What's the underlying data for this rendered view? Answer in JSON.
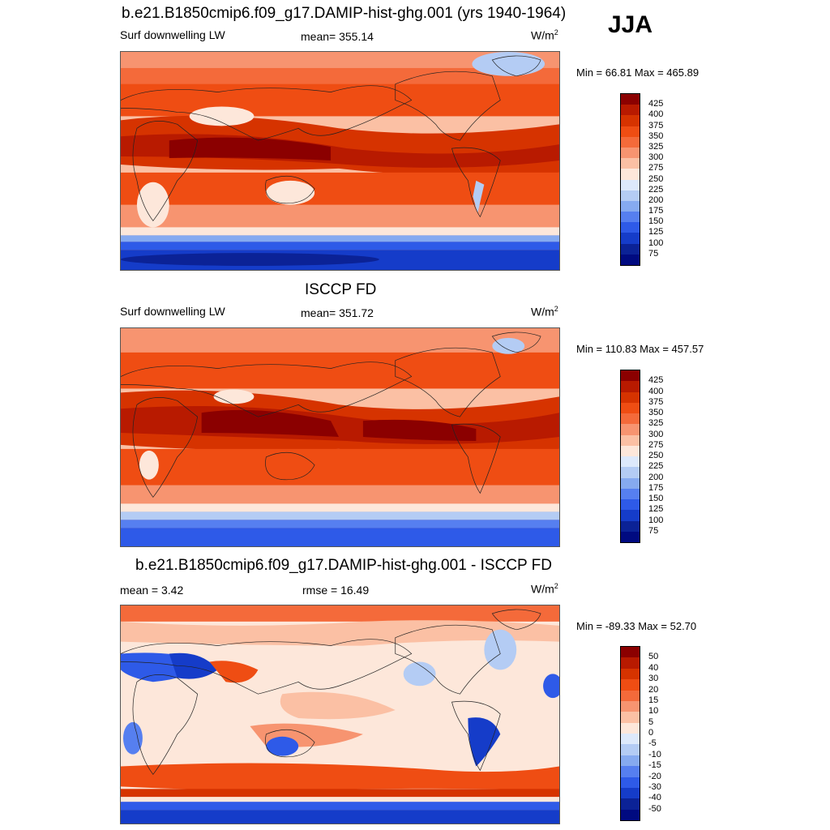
{
  "season": "JJA",
  "panels": [
    {
      "title": "b.e21.B1850cmip6.f09_g17.DAMIP-hist-ghg.001 (yrs 1940-1964)",
      "left_label": "Surf downwelling LW",
      "center_label": "mean= 355.14",
      "unit_base": "W/m",
      "unit_sup": "2",
      "minmax": "Min =  66.81 Max = 465.89",
      "colorbar_labels": [
        "425",
        "400",
        "375",
        "350",
        "325",
        "300",
        "275",
        "250",
        "225",
        "200",
        "175",
        "150",
        "125",
        "100",
        "75"
      ]
    },
    {
      "title": "ISCCP FD",
      "left_label": "Surf downwelling LW",
      "center_label": "mean= 351.72",
      "unit_base": "W/m",
      "unit_sup": "2",
      "minmax": "Min = 110.83 Max = 457.57",
      "colorbar_labels": [
        "425",
        "400",
        "375",
        "350",
        "325",
        "300",
        "275",
        "250",
        "225",
        "200",
        "175",
        "150",
        "125",
        "100",
        "75"
      ]
    },
    {
      "title": "b.e21.B1850cmip6.f09_g17.DAMIP-hist-ghg.001 - ISCCP FD",
      "left_label": "mean =   3.42",
      "center_label": "rmse =  16.49",
      "unit_base": "W/m",
      "unit_sup": "2",
      "minmax": "Min = -89.33 Max =  52.70",
      "colorbar_labels": [
        "50",
        "40",
        "30",
        "20",
        "15",
        "10",
        "5",
        "0",
        "-5",
        "-10",
        "-15",
        "-20",
        "-30",
        "-40",
        "-50"
      ]
    }
  ],
  "colors": {
    "palette": [
      "#8b0000",
      "#b81a00",
      "#d63300",
      "#ef4d13",
      "#f46a3a",
      "#f79470",
      "#fbc0a4",
      "#fde7da",
      "#dde9fb",
      "#b4ccf4",
      "#86aaf0",
      "#567ff0",
      "#2e5ae8",
      "#153cc9",
      "#0b2296",
      "#000a80"
    ]
  }
}
